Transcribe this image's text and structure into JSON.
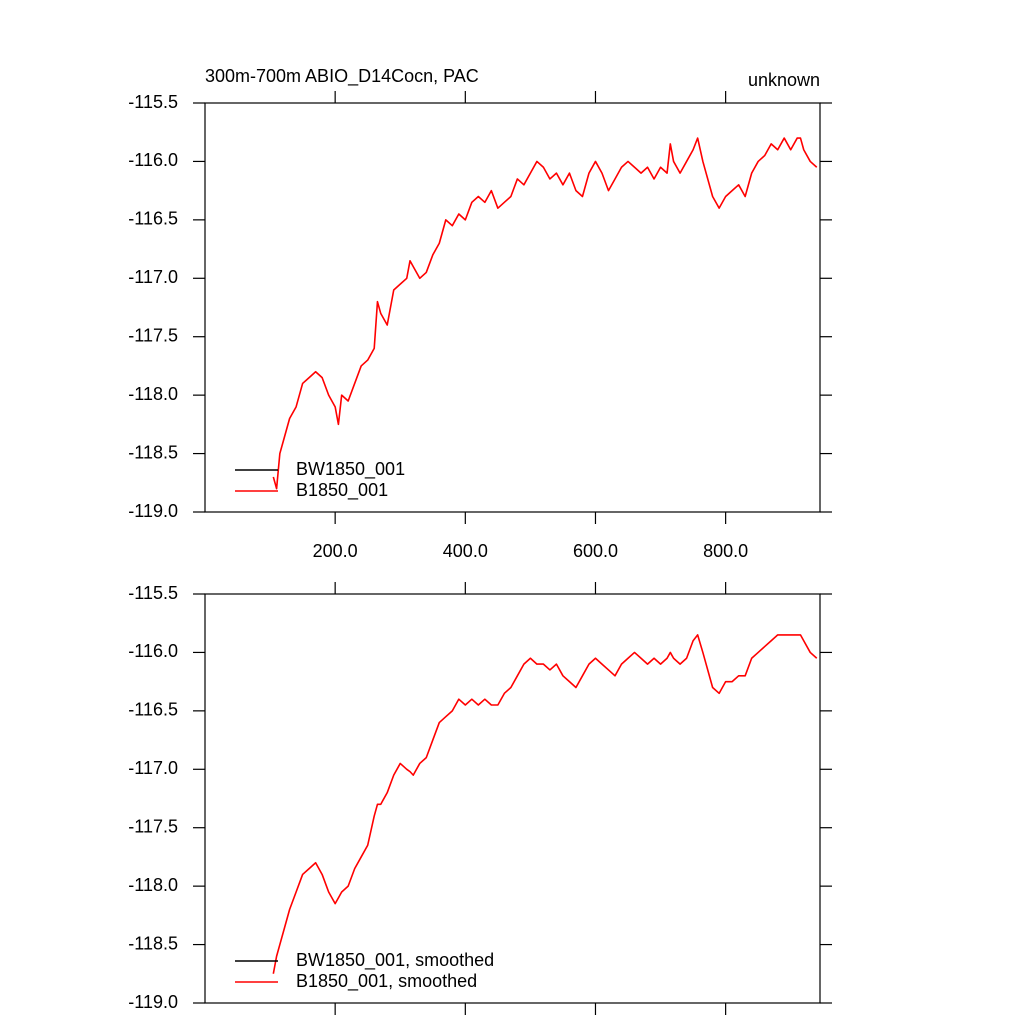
{
  "chart_data": [
    {
      "type": "line",
      "title": "300m-700m ABIO_D14Cocn, PAC",
      "subtitle": "unknown",
      "x": [
        105,
        110,
        115,
        120,
        130,
        140,
        150,
        160,
        170,
        180,
        190,
        200,
        205,
        210,
        220,
        230,
        240,
        250,
        260,
        265,
        270,
        280,
        290,
        300,
        310,
        315,
        320,
        330,
        340,
        350,
        360,
        370,
        380,
        390,
        400,
        410,
        420,
        430,
        440,
        450,
        460,
        470,
        480,
        490,
        500,
        510,
        520,
        530,
        540,
        550,
        560,
        570,
        580,
        590,
        600,
        610,
        620,
        630,
        640,
        650,
        660,
        670,
        680,
        690,
        700,
        710,
        715,
        720,
        730,
        740,
        750,
        757,
        765,
        780,
        790,
        800,
        810,
        820,
        830,
        840,
        850,
        860,
        870,
        880,
        890,
        900,
        910,
        915,
        920,
        930,
        940
      ],
      "series": [
        {
          "name": "BW1850_001",
          "color": "#000000",
          "values": [
            null,
            null,
            null,
            null,
            null,
            null,
            null,
            null,
            null,
            null,
            null,
            null,
            null,
            null,
            null,
            null,
            null,
            null,
            null,
            null,
            null,
            null,
            null,
            null,
            null,
            null,
            null,
            null,
            null,
            null,
            null,
            null,
            null,
            null,
            null,
            null,
            null,
            null,
            null,
            null,
            null,
            null,
            null,
            null,
            null,
            null,
            null,
            null,
            null,
            null,
            null,
            null,
            null,
            null,
            null,
            null,
            null,
            null,
            null,
            null,
            null,
            null,
            null,
            null,
            null,
            null,
            null,
            null,
            null,
            null,
            null,
            null,
            null,
            null,
            null,
            null,
            null,
            null,
            null,
            null,
            null,
            null,
            null,
            null,
            null,
            null,
            null,
            null,
            null,
            null,
            null
          ]
        },
        {
          "name": "B1850_001",
          "color": "#ff0000",
          "values": [
            -118.7,
            -118.8,
            -118.5,
            -118.4,
            -118.2,
            -118.1,
            -117.9,
            -117.85,
            -117.8,
            -117.85,
            -118.0,
            -118.1,
            -118.25,
            -118.0,
            -118.05,
            -117.9,
            -117.75,
            -117.7,
            -117.6,
            -117.2,
            -117.3,
            -117.4,
            -117.1,
            -117.05,
            -117.0,
            -116.85,
            -116.9,
            -117.0,
            -116.95,
            -116.8,
            -116.7,
            -116.5,
            -116.55,
            -116.45,
            -116.5,
            -116.35,
            -116.3,
            -116.35,
            -116.25,
            -116.4,
            -116.35,
            -116.3,
            -116.15,
            -116.2,
            -116.1,
            -116.0,
            -116.05,
            -116.15,
            -116.1,
            -116.2,
            -116.1,
            -116.25,
            -116.3,
            -116.1,
            -116.0,
            -116.1,
            -116.25,
            -116.15,
            -116.05,
            -116.0,
            -116.05,
            -116.1,
            -116.05,
            -116.15,
            -116.05,
            -116.1,
            -115.85,
            -116.0,
            -116.1,
            -116.0,
            -115.9,
            -115.8,
            -116.0,
            -116.3,
            -116.4,
            -116.3,
            -116.25,
            -116.2,
            -116.3,
            -116.1,
            -116.0,
            -115.95,
            -115.85,
            -115.9,
            -115.8,
            -115.9,
            -115.8,
            -115.8,
            -115.9,
            -116.0,
            -116.05
          ]
        }
      ],
      "xlim": [
        0,
        945
      ],
      "xticks": [
        {
          "value": 200,
          "label": "200.0"
        },
        {
          "value": 400,
          "label": "400.0"
        },
        {
          "value": 600,
          "label": "600.0"
        },
        {
          "value": 800,
          "label": "800.0"
        }
      ],
      "xtick_labels": true,
      "ylim": [
        -119.0,
        -115.5
      ],
      "yticks": [
        {
          "value": -119.0,
          "label": "-119.0"
        },
        -118.5,
        {
          "value": -118.0,
          "label": "-118.0"
        },
        -117.5,
        {
          "value": -117.0,
          "label": "-117.0"
        },
        -116.5,
        {
          "value": -116.0,
          "label": "-116.0"
        },
        -115.5
      ],
      "legend": "lower left"
    },
    {
      "type": "line",
      "x": [
        105,
        110,
        115,
        120,
        130,
        140,
        150,
        160,
        170,
        180,
        190,
        200,
        205,
        210,
        220,
        230,
        240,
        250,
        260,
        265,
        270,
        280,
        290,
        300,
        310,
        315,
        320,
        330,
        340,
        350,
        360,
        370,
        380,
        390,
        400,
        410,
        420,
        430,
        440,
        450,
        460,
        470,
        480,
        490,
        500,
        510,
        520,
        530,
        540,
        550,
        560,
        570,
        580,
        590,
        600,
        610,
        620,
        630,
        640,
        650,
        660,
        670,
        680,
        690,
        700,
        710,
        715,
        720,
        730,
        740,
        750,
        757,
        765,
        780,
        790,
        800,
        810,
        820,
        830,
        840,
        850,
        860,
        870,
        880,
        890,
        900,
        910,
        915,
        920,
        930,
        940
      ],
      "series": [
        {
          "name": "BW1850_001, smoothed",
          "color": "#000000",
          "values": [
            null,
            null,
            null,
            null,
            null,
            null,
            null,
            null,
            null,
            null,
            null,
            null,
            null,
            null,
            null,
            null,
            null,
            null,
            null,
            null,
            null,
            null,
            null,
            null,
            null,
            null,
            null,
            null,
            null,
            null,
            null,
            null,
            null,
            null,
            null,
            null,
            null,
            null,
            null,
            null,
            null,
            null,
            null,
            null,
            null,
            null,
            null,
            null,
            null,
            null,
            null,
            null,
            null,
            null,
            null,
            null,
            null,
            null,
            null,
            null,
            null,
            null,
            null,
            null,
            null,
            null,
            null,
            null,
            null,
            null,
            null,
            null,
            null,
            null,
            null,
            null,
            null,
            null,
            null,
            null,
            null,
            null,
            null,
            null,
            null,
            null,
            null,
            null,
            null,
            null,
            null
          ]
        },
        {
          "name": "B1850_001, smoothed",
          "color": "#ff0000",
          "values": [
            -118.75,
            -118.6,
            -118.5,
            -118.4,
            -118.2,
            -118.05,
            -117.9,
            -117.85,
            -117.8,
            -117.9,
            -118.05,
            -118.15,
            -118.1,
            -118.05,
            -118.0,
            -117.85,
            -117.75,
            -117.65,
            -117.4,
            -117.3,
            -117.3,
            -117.2,
            -117.05,
            -116.95,
            -117.0,
            -117.02,
            -117.05,
            -116.95,
            -116.9,
            -116.75,
            -116.6,
            -116.55,
            -116.5,
            -116.4,
            -116.45,
            -116.4,
            -116.45,
            -116.4,
            -116.45,
            -116.45,
            -116.35,
            -116.3,
            -116.2,
            -116.1,
            -116.05,
            -116.1,
            -116.1,
            -116.15,
            -116.1,
            -116.2,
            -116.25,
            -116.3,
            -116.2,
            -116.1,
            -116.05,
            -116.1,
            -116.15,
            -116.2,
            -116.1,
            -116.05,
            -116.0,
            -116.05,
            -116.1,
            -116.05,
            -116.1,
            -116.05,
            -116.0,
            -116.05,
            -116.1,
            -116.05,
            -115.9,
            -115.85,
            -116.0,
            -116.3,
            -116.35,
            -116.25,
            -116.25,
            -116.2,
            -116.2,
            -116.05,
            -116.0,
            -115.95,
            -115.9,
            -115.85,
            -115.85,
            -115.85,
            -115.85,
            -115.85,
            -115.9,
            -116.0,
            -116.05
          ]
        }
      ],
      "xlim": [
        0,
        945
      ],
      "xticks": [
        200,
        400,
        600,
        800
      ],
      "xtick_labels": false,
      "ylim": [
        -119.0,
        -115.5
      ],
      "yticks": [
        {
          "value": -119.0,
          "label": "-119.0"
        },
        -118.5,
        {
          "value": -118.0,
          "label": "-118.0"
        },
        -117.5,
        {
          "value": -117.0,
          "label": "-117.0"
        },
        -116.5,
        {
          "value": -116.0,
          "label": "-116.0"
        },
        -115.5
      ],
      "legend": "lower left"
    }
  ]
}
